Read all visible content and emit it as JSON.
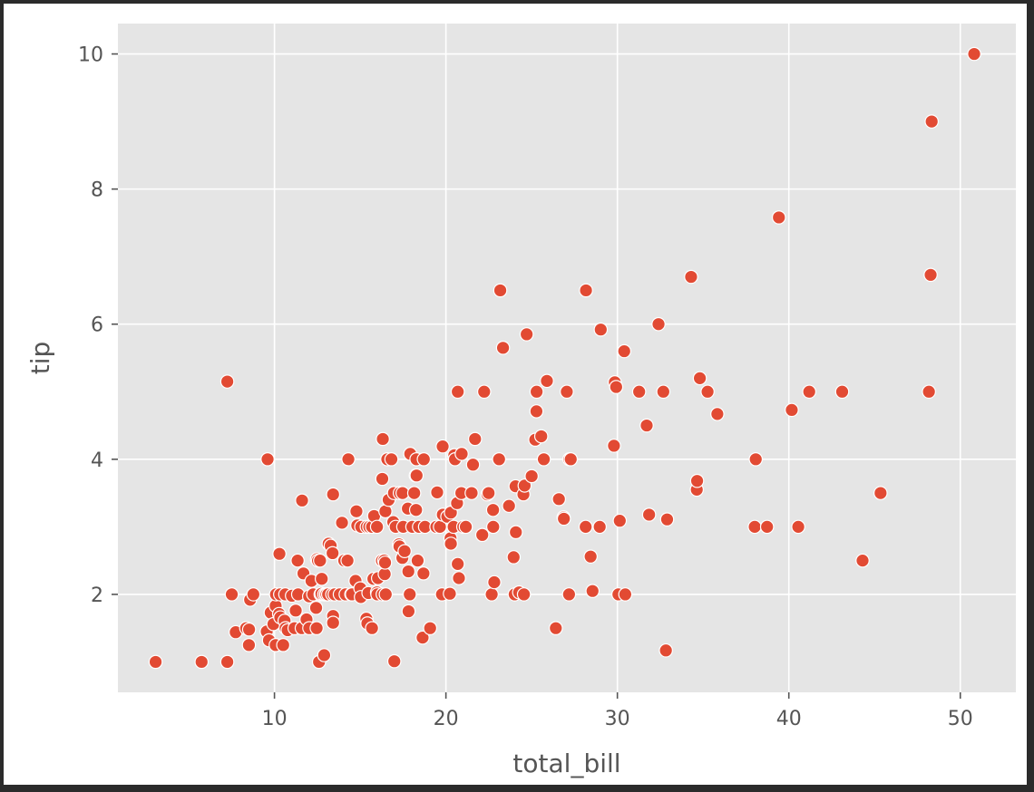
{
  "chart_data": {
    "type": "scatter",
    "title": "",
    "xlabel": "total_bill",
    "ylabel": "tip",
    "xlim": [
      0.87,
      53.24
    ],
    "ylim": [
      0.55,
      10.45
    ],
    "xticks": [
      10,
      20,
      30,
      40,
      50
    ],
    "yticks": [
      2,
      4,
      6,
      8,
      10
    ],
    "grid": true,
    "legend": "none",
    "colors": {
      "point": "#E24A33",
      "background": "#E5E5E5",
      "grid": "#FFFFFF",
      "text": "#555555"
    },
    "series": [
      {
        "points": [
          [
            3.07,
            1.0
          ],
          [
            5.75,
            1.0
          ],
          [
            7.25,
            1.0
          ],
          [
            7.25,
            5.15
          ],
          [
            7.51,
            2.0
          ],
          [
            7.74,
            1.44
          ],
          [
            8.35,
            1.5
          ],
          [
            8.51,
            1.25
          ],
          [
            8.52,
            1.48
          ],
          [
            8.58,
            1.92
          ],
          [
            8.77,
            2.0
          ],
          [
            9.55,
            1.45
          ],
          [
            9.6,
            4.0
          ],
          [
            9.68,
            1.32
          ],
          [
            9.78,
            1.73
          ],
          [
            9.94,
            1.56
          ],
          [
            10.07,
            1.83
          ],
          [
            10.07,
            1.25
          ],
          [
            10.09,
            2.0
          ],
          [
            10.27,
            1.71
          ],
          [
            10.29,
            2.6
          ],
          [
            10.33,
            2.0
          ],
          [
            10.34,
            1.66
          ],
          [
            10.51,
            1.25
          ],
          [
            10.59,
            1.61
          ],
          [
            10.63,
            2.0
          ],
          [
            10.65,
            1.5
          ],
          [
            10.77,
            1.47
          ],
          [
            11.02,
            1.98
          ],
          [
            11.17,
            1.5
          ],
          [
            11.24,
            1.76
          ],
          [
            11.35,
            2.5
          ],
          [
            11.38,
            2.0
          ],
          [
            11.59,
            1.5
          ],
          [
            11.61,
            3.39
          ],
          [
            11.69,
            2.31
          ],
          [
            11.87,
            1.63
          ],
          [
            12.02,
            1.97
          ],
          [
            12.03,
            1.5
          ],
          [
            12.16,
            2.2
          ],
          [
            12.26,
            2.0
          ],
          [
            12.43,
            1.8
          ],
          [
            12.46,
            1.5
          ],
          [
            12.48,
            2.52
          ],
          [
            12.54,
            2.5
          ],
          [
            12.6,
            1.0
          ],
          [
            12.66,
            2.5
          ],
          [
            12.69,
            2.0
          ],
          [
            12.74,
            2.01
          ],
          [
            12.76,
            2.23
          ],
          [
            12.9,
            1.1
          ],
          [
            12.9,
            2.0
          ],
          [
            13.0,
            2.0
          ],
          [
            13.03,
            2.0
          ],
          [
            13.13,
            2.0
          ],
          [
            13.16,
            2.75
          ],
          [
            13.28,
            2.72
          ],
          [
            13.37,
            2.0
          ],
          [
            13.39,
            2.61
          ],
          [
            13.42,
            3.48
          ],
          [
            13.42,
            1.68
          ],
          [
            13.42,
            1.58
          ],
          [
            13.51,
            2.0
          ],
          [
            13.81,
            2.0
          ],
          [
            13.94,
            3.06
          ],
          [
            14.07,
            2.5
          ],
          [
            14.15,
            2.0
          ],
          [
            14.26,
            2.5
          ],
          [
            14.31,
            4.0
          ],
          [
            14.48,
            2.0
          ],
          [
            14.52,
            2.0
          ],
          [
            14.73,
            2.2
          ],
          [
            14.78,
            3.23
          ],
          [
            14.83,
            3.02
          ],
          [
            15.01,
            2.09
          ],
          [
            15.04,
            1.96
          ],
          [
            15.06,
            3.0
          ],
          [
            15.36,
            1.64
          ],
          [
            15.38,
            3.0
          ],
          [
            15.42,
            1.57
          ],
          [
            15.48,
            2.02
          ],
          [
            15.53,
            3.0
          ],
          [
            15.69,
            3.0
          ],
          [
            15.69,
            1.5
          ],
          [
            15.77,
            2.23
          ],
          [
            15.81,
            3.16
          ],
          [
            15.98,
            2.03
          ],
          [
            15.98,
            3.0
          ],
          [
            16.0,
            2.0
          ],
          [
            16.04,
            2.24
          ],
          [
            16.27,
            2.5
          ],
          [
            16.29,
            3.71
          ],
          [
            16.31,
            2.0
          ],
          [
            16.32,
            4.3
          ],
          [
            16.4,
            2.5
          ],
          [
            16.43,
            2.3
          ],
          [
            16.45,
            2.47
          ],
          [
            16.47,
            3.23
          ],
          [
            16.49,
            2.0
          ],
          [
            16.58,
            4.0
          ],
          [
            16.66,
            3.4
          ],
          [
            16.82,
            4.0
          ],
          [
            16.93,
            3.07
          ],
          [
            16.97,
            3.5
          ],
          [
            16.99,
            1.01
          ],
          [
            17.07,
            3.0
          ],
          [
            17.26,
            2.74
          ],
          [
            17.29,
            2.71
          ],
          [
            17.31,
            3.5
          ],
          [
            17.46,
            2.54
          ],
          [
            17.47,
            3.5
          ],
          [
            17.51,
            3.0
          ],
          [
            17.59,
            2.64
          ],
          [
            17.78,
            3.27
          ],
          [
            17.81,
            2.34
          ],
          [
            17.82,
            1.75
          ],
          [
            17.89,
            2.0
          ],
          [
            17.92,
            4.08
          ],
          [
            18.04,
            3.0
          ],
          [
            18.15,
            3.5
          ],
          [
            18.24,
            3.76
          ],
          [
            18.26,
            3.25
          ],
          [
            18.28,
            4.0
          ],
          [
            18.29,
            3.76
          ],
          [
            18.35,
            2.5
          ],
          [
            18.43,
            3.0
          ],
          [
            18.64,
            1.36
          ],
          [
            18.69,
            2.31
          ],
          [
            18.71,
            4.0
          ],
          [
            18.78,
            3.0
          ],
          [
            19.08,
            1.5
          ],
          [
            19.44,
            3.0
          ],
          [
            19.49,
            3.51
          ],
          [
            19.65,
            3.0
          ],
          [
            19.77,
            2.0
          ],
          [
            19.81,
            4.19
          ],
          [
            19.82,
            3.18
          ],
          [
            20.08,
            3.15
          ],
          [
            20.23,
            2.01
          ],
          [
            20.27,
            2.83
          ],
          [
            20.29,
            2.75
          ],
          [
            20.29,
            3.21
          ],
          [
            20.45,
            3.0
          ],
          [
            20.49,
            4.06
          ],
          [
            20.53,
            4.0
          ],
          [
            20.65,
            3.35
          ],
          [
            20.69,
            2.45
          ],
          [
            20.69,
            5.0
          ],
          [
            20.76,
            2.24
          ],
          [
            20.9,
            3.5
          ],
          [
            20.92,
            4.08
          ],
          [
            21.01,
            3.0
          ],
          [
            21.16,
            3.0
          ],
          [
            21.5,
            3.5
          ],
          [
            21.58,
            3.92
          ],
          [
            21.7,
            4.3
          ],
          [
            22.12,
            2.88
          ],
          [
            22.23,
            5.0
          ],
          [
            22.42,
            3.48
          ],
          [
            22.49,
            3.5
          ],
          [
            22.67,
            2.0
          ],
          [
            22.75,
            3.25
          ],
          [
            22.76,
            3.0
          ],
          [
            22.82,
            2.18
          ],
          [
            23.1,
            4.0
          ],
          [
            23.17,
            6.5
          ],
          [
            23.33,
            5.65
          ],
          [
            23.68,
            3.31
          ],
          [
            23.95,
            2.55
          ],
          [
            24.01,
            2.0
          ],
          [
            24.06,
            3.6
          ],
          [
            24.08,
            2.92
          ],
          [
            24.27,
            2.03
          ],
          [
            24.52,
            3.48
          ],
          [
            24.55,
            2.0
          ],
          [
            24.59,
            3.61
          ],
          [
            24.71,
            5.85
          ],
          [
            25.0,
            3.75
          ],
          [
            25.21,
            4.29
          ],
          [
            25.28,
            4.71
          ],
          [
            25.29,
            5.0
          ],
          [
            25.56,
            4.34
          ],
          [
            25.71,
            4.0
          ],
          [
            25.89,
            5.16
          ],
          [
            26.41,
            1.5
          ],
          [
            26.59,
            3.41
          ],
          [
            26.86,
            3.14
          ],
          [
            26.88,
            3.12
          ],
          [
            27.05,
            5.0
          ],
          [
            27.18,
            2.0
          ],
          [
            27.2,
            4.0
          ],
          [
            27.28,
            4.0
          ],
          [
            28.15,
            3.0
          ],
          [
            28.17,
            6.5
          ],
          [
            28.44,
            2.56
          ],
          [
            28.55,
            2.05
          ],
          [
            28.97,
            3.0
          ],
          [
            29.03,
            5.92
          ],
          [
            29.8,
            4.2
          ],
          [
            29.85,
            5.14
          ],
          [
            29.93,
            5.07
          ],
          [
            30.06,
            2.0
          ],
          [
            30.14,
            3.09
          ],
          [
            30.4,
            5.6
          ],
          [
            30.46,
            2.0
          ],
          [
            31.27,
            5.0
          ],
          [
            31.71,
            4.5
          ],
          [
            31.85,
            3.18
          ],
          [
            32.4,
            6.0
          ],
          [
            32.68,
            5.0
          ],
          [
            32.83,
            1.17
          ],
          [
            32.9,
            3.11
          ],
          [
            34.3,
            6.7
          ],
          [
            34.63,
            3.55
          ],
          [
            34.65,
            3.68
          ],
          [
            34.81,
            5.2
          ],
          [
            35.26,
            5.0
          ],
          [
            35.83,
            4.67
          ],
          [
            38.01,
            3.0
          ],
          [
            38.07,
            4.0
          ],
          [
            38.73,
            3.0
          ],
          [
            39.42,
            7.58
          ],
          [
            40.17,
            4.73
          ],
          [
            40.55,
            3.0
          ],
          [
            41.19,
            5.0
          ],
          [
            43.11,
            5.0
          ],
          [
            44.3,
            2.5
          ],
          [
            45.35,
            3.5
          ],
          [
            48.17,
            5.0
          ],
          [
            48.27,
            6.73
          ],
          [
            48.33,
            9.0
          ],
          [
            50.81,
            10.0
          ]
        ]
      }
    ]
  }
}
